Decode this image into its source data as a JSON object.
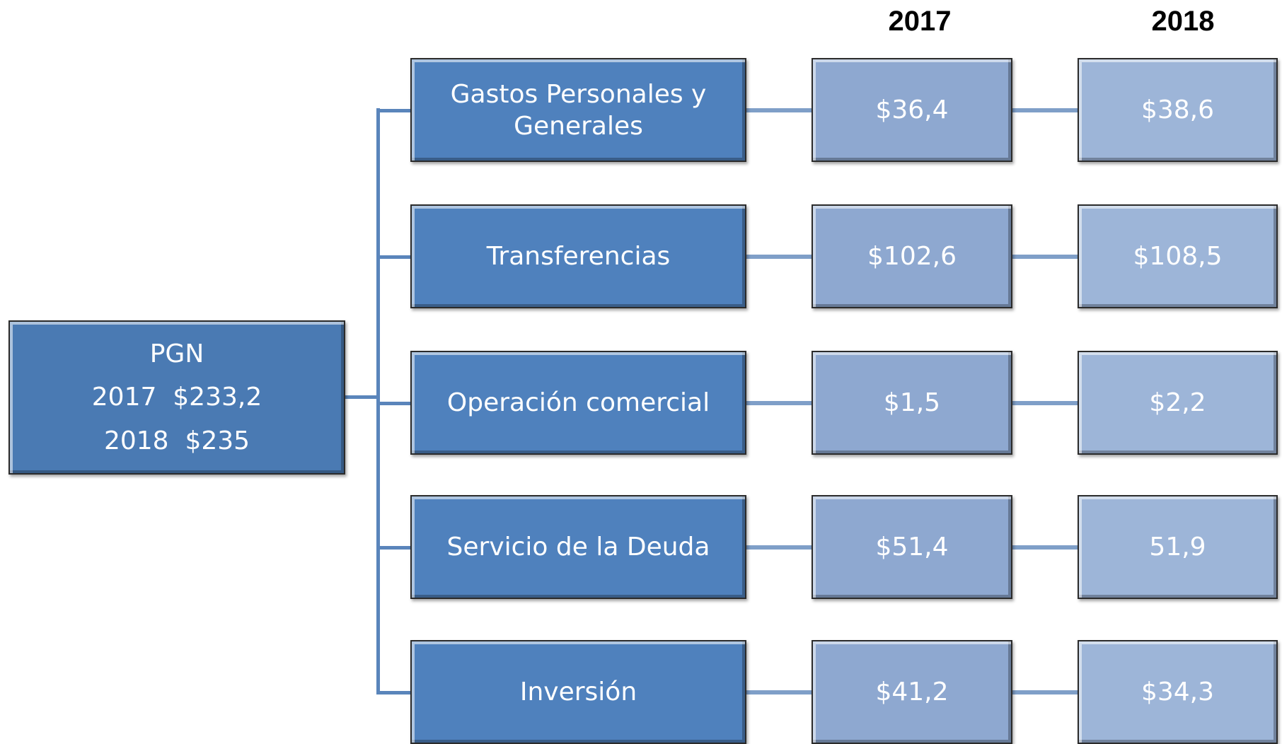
{
  "header": {
    "years": [
      "2017",
      "2018"
    ]
  },
  "root": {
    "lines": [
      "PGN",
      "2017  $233,2",
      "2018  $235"
    ]
  },
  "rows": [
    {
      "label": "Gastos Personales y Generales",
      "values": [
        "$36,4",
        "$38,6"
      ]
    },
    {
      "label": "Transferencias",
      "values": [
        "$102,6",
        "$108,5"
      ]
    },
    {
      "label": "Operación comercial",
      "values": [
        "$1,5",
        "$2,2"
      ]
    },
    {
      "label": "Servicio de la Deuda",
      "values": [
        "$51,4",
        "51,9"
      ]
    },
    {
      "label": "Inversión",
      "values": [
        "$41,2",
        "$34,3"
      ]
    }
  ]
}
